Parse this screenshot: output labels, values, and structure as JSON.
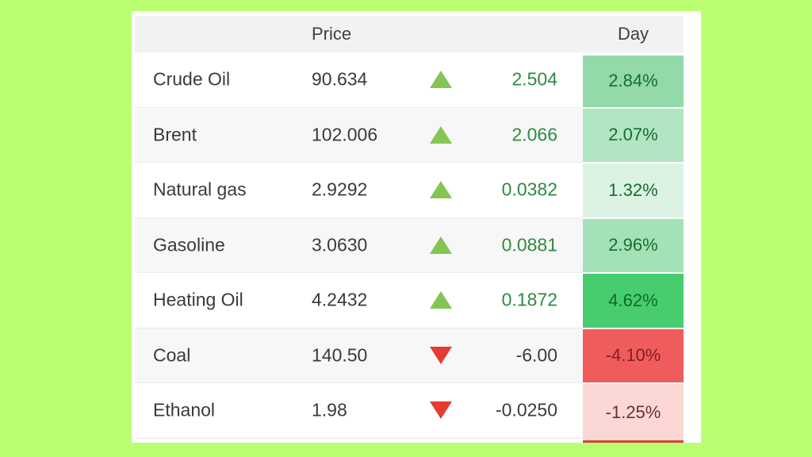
{
  "page": {
    "background_color": "#baff72",
    "panel_background": "#ffffff"
  },
  "table": {
    "headers": {
      "price": "Price",
      "day": "Day"
    },
    "header_bg": "#f1f2f3",
    "row_alt_bg": "#f7f7f8",
    "separator_color": "#ececec",
    "up_arrow_color": "#85c554",
    "down_arrow_color": "#e73a31",
    "positive_change_color": "#2e8b40",
    "negative_change_color": "#3b3b3b",
    "next_row_strip_color": "#ca4a30",
    "rows": [
      {
        "name": "Crude Oil",
        "price": "90.634",
        "direction": "up",
        "change": "2.504",
        "day": "2.84%",
        "day_bg": "#93d9a9",
        "day_color": "#156f2d"
      },
      {
        "name": "Brent",
        "price": "102.006",
        "direction": "up",
        "change": "2.066",
        "day": "2.07%",
        "day_bg": "#b2e5c2",
        "day_color": "#156f2d"
      },
      {
        "name": "Natural gas",
        "price": "2.9292",
        "direction": "up",
        "change": "0.0382",
        "day": "1.32%",
        "day_bg": "#dcf3e3",
        "day_color": "#156f2d"
      },
      {
        "name": "Gasoline",
        "price": "3.0630",
        "direction": "up",
        "change": "0.0881",
        "day": "2.96%",
        "day_bg": "#a5e1b8",
        "day_color": "#156f2d"
      },
      {
        "name": "Heating Oil",
        "price": "4.2432",
        "direction": "up",
        "change": "0.1872",
        "day": "4.62%",
        "day_bg": "#48cd6e",
        "day_color": "#0d6b29"
      },
      {
        "name": "Coal",
        "price": "140.50",
        "direction": "down",
        "change": "-6.00",
        "day": "-4.10%",
        "day_bg": "#f05c5c",
        "day_color": "#801f26"
      },
      {
        "name": "Ethanol",
        "price": "1.98",
        "direction": "down",
        "change": "-0.0250",
        "day": "-1.25%",
        "day_bg": "#fbd8d5",
        "day_color": "#6f2f28"
      }
    ]
  }
}
